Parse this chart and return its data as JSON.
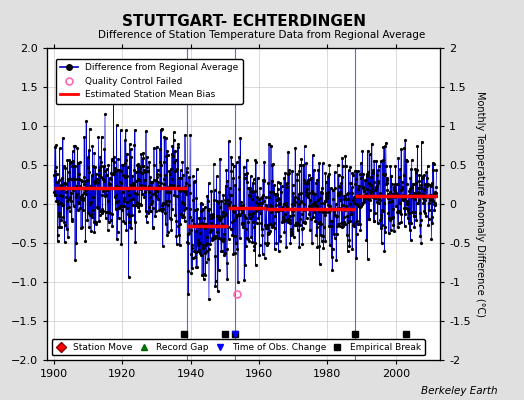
{
  "title": "STUTTGART- ECHTERDINGEN",
  "subtitle": "Difference of Station Temperature Data from Regional Average",
  "ylabel": "Monthly Temperature Anomaly Difference (°C)",
  "bottom_credit": "Berkeley Earth",
  "ylim": [
    -2,
    2
  ],
  "xlim": [
    1898,
    2013
  ],
  "xticks": [
    1900,
    1920,
    1940,
    1960,
    1980,
    2000
  ],
  "yticks": [
    -2,
    -1.5,
    -1,
    -0.5,
    0,
    0.5,
    1,
    1.5,
    2
  ],
  "background_color": "#e0e0e0",
  "plot_bg_color": "#ffffff",
  "line_color": "#0000cc",
  "dot_color": "#000000",
  "bias_color": "#ff0000",
  "qc_color": "#ff69b4",
  "vline_color": "#6666cc",
  "seed": 42,
  "segments": [
    {
      "start": 1900,
      "end": 1939,
      "mean_bias": 0.2,
      "std": 0.35
    },
    {
      "start": 1939,
      "end": 1951,
      "mean_bias": -0.28,
      "std": 0.38
    },
    {
      "start": 1951,
      "end": 1962,
      "mean_bias": -0.05,
      "std": 0.35
    },
    {
      "start": 1962,
      "end": 1988,
      "mean_bias": -0.07,
      "std": 0.32
    },
    {
      "start": 1988,
      "end": 2012,
      "mean_bias": 0.1,
      "std": 0.28
    }
  ],
  "bias_segments": [
    {
      "start": 1900,
      "end": 1939,
      "value": 0.2
    },
    {
      "start": 1939,
      "end": 1951,
      "value": -0.28
    },
    {
      "start": 1951,
      "end": 1962,
      "value": -0.05
    },
    {
      "start": 1962,
      "end": 1988,
      "value": -0.07
    },
    {
      "start": 1988,
      "end": 2012,
      "value": 0.1
    }
  ],
  "empirical_breaks": [
    1938,
    1950,
    1953,
    1988,
    2003
  ],
  "obs_changes": [
    1953
  ],
  "station_moves": [],
  "record_gaps": [],
  "qc_failed": [
    {
      "year": 1953.5,
      "value": -1.15
    }
  ],
  "vertical_lines": [
    1939,
    1953,
    1988
  ],
  "marker_y": -1.67,
  "figsize": [
    5.24,
    4.0
  ],
  "dpi": 100
}
